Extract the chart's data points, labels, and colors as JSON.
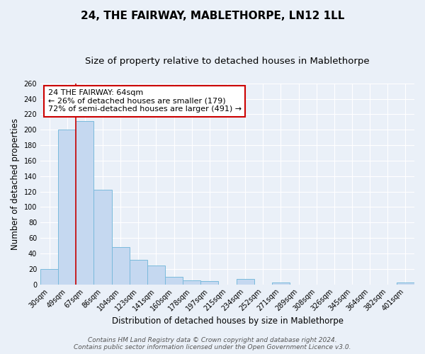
{
  "title": "24, THE FAIRWAY, MABLETHORPE, LN12 1LL",
  "subtitle": "Size of property relative to detached houses in Mablethorpe",
  "xlabel": "Distribution of detached houses by size in Mablethorpe",
  "ylabel": "Number of detached properties",
  "bin_labels": [
    "30sqm",
    "49sqm",
    "67sqm",
    "86sqm",
    "104sqm",
    "123sqm",
    "141sqm",
    "160sqm",
    "178sqm",
    "197sqm",
    "215sqm",
    "234sqm",
    "252sqm",
    "271sqm",
    "289sqm",
    "308sqm",
    "326sqm",
    "345sqm",
    "364sqm",
    "382sqm",
    "401sqm"
  ],
  "bar_heights": [
    20,
    200,
    211,
    122,
    48,
    32,
    24,
    10,
    5,
    4,
    0,
    7,
    0,
    2,
    0,
    0,
    0,
    0,
    0,
    0,
    2
  ],
  "bar_color": "#c5d8f0",
  "bar_edge_color": "#7abadc",
  "ylim": [
    0,
    260
  ],
  "yticks": [
    0,
    20,
    40,
    60,
    80,
    100,
    120,
    140,
    160,
    180,
    200,
    220,
    240,
    260
  ],
  "marker_bin_index": 2,
  "marker_color": "#cc0000",
  "annotation_text": "24 THE FAIRWAY: 64sqm\n← 26% of detached houses are smaller (179)\n72% of semi-detached houses are larger (491) →",
  "annotation_box_color": "#ffffff",
  "annotation_border_color": "#cc0000",
  "footer_line1": "Contains HM Land Registry data © Crown copyright and database right 2024.",
  "footer_line2": "Contains public sector information licensed under the Open Government Licence v3.0.",
  "background_color": "#eaf0f8",
  "grid_color": "#ffffff",
  "title_fontsize": 11,
  "subtitle_fontsize": 9.5,
  "axis_label_fontsize": 8.5,
  "tick_fontsize": 7,
  "annotation_fontsize": 8,
  "footer_fontsize": 6.5
}
